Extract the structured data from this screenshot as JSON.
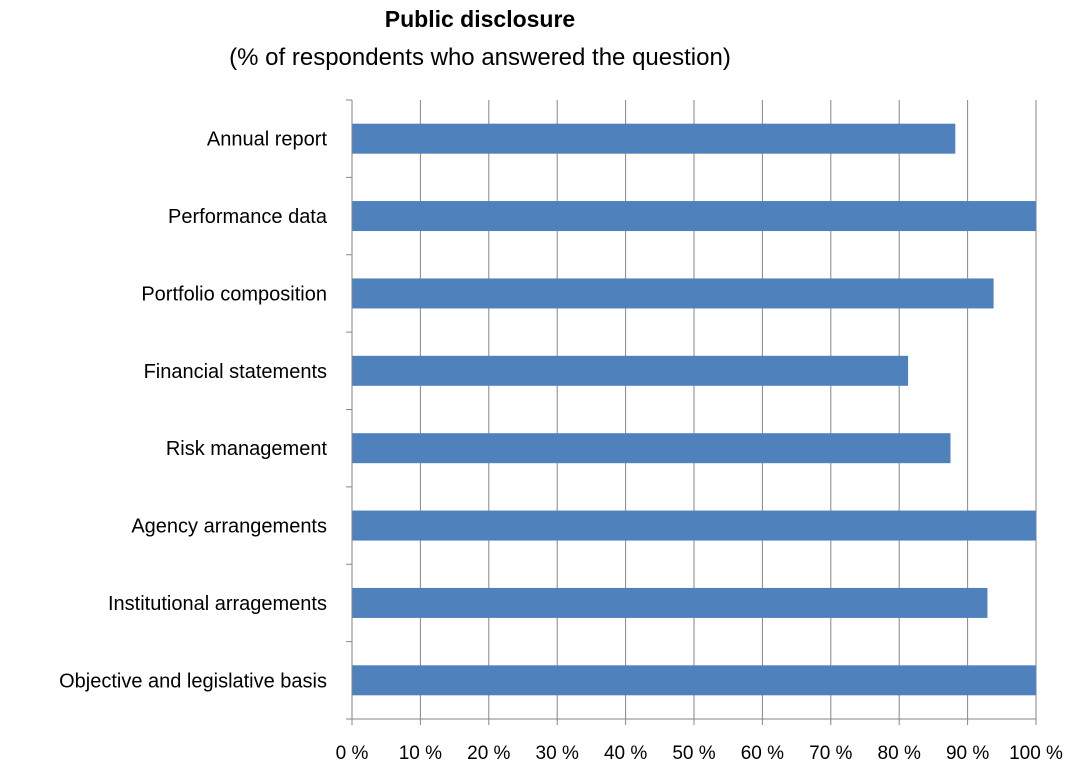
{
  "chart_data": {
    "type": "bar",
    "orientation": "horizontal",
    "title": "Public disclosure",
    "subtitle": "(% of respondents who answered the question)",
    "categories": [
      "Annual report",
      "Performance data",
      "Portfolio composition",
      "Financial statements",
      "Risk management",
      "Agency arrangements",
      "Institutional arragements",
      "Objective and legislative basis"
    ],
    "values": [
      88.2,
      100,
      93.8,
      81.3,
      87.5,
      100,
      92.9,
      100
    ],
    "xlim": [
      0,
      100
    ],
    "xticks": [
      "0 %",
      "10 %",
      "20 %",
      "30 %",
      "40 %",
      "50 %",
      "60 %",
      "70 %",
      "80 %",
      "90 %",
      "100 %"
    ],
    "xtick_values": [
      0,
      10,
      20,
      30,
      40,
      50,
      60,
      70,
      80,
      90,
      100
    ],
    "grid": "vertical",
    "bar_color": "#4f81bd",
    "grid_color": "#868686",
    "axis_color": "#868686"
  }
}
